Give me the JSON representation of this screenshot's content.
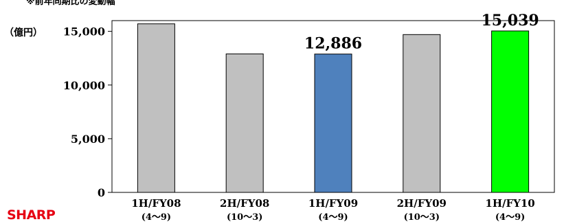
{
  "note": "※前年同期比の変動幅",
  "unit_label": "（億円）",
  "brand": "SHARP",
  "colors": {
    "default_bar": "#c0c0c0",
    "fy09_bar": "#4f81bd",
    "fy10_bar": "#00ff00",
    "brand_red": "#e60012"
  },
  "chart_data": {
    "type": "bar",
    "categories": [
      "1H/FY08",
      "2H/FY08",
      "1H/FY09",
      "2H/FY09",
      "1H/FY10"
    ],
    "periods": [
      "(4〜9)",
      "(10〜3)",
      "(4〜9)",
      "(10〜3)",
      "(4〜9)"
    ],
    "values": [
      15700,
      12900,
      12886,
      14700,
      15039
    ],
    "bar_colors": [
      "#c0c0c0",
      "#c0c0c0",
      "#4f81bd",
      "#c0c0c0",
      "#00ff00"
    ],
    "data_labels": [
      null,
      null,
      "12,886",
      null,
      "15,039"
    ],
    "ylim": [
      0,
      16000
    ],
    "yticks": [
      0,
      5000,
      10000,
      15000
    ],
    "ytick_labels": [
      "0",
      "5,000",
      "10,000",
      "15,000"
    ],
    "xlabel": "",
    "ylabel": "（億円）",
    "grid": false,
    "legend": "none"
  }
}
